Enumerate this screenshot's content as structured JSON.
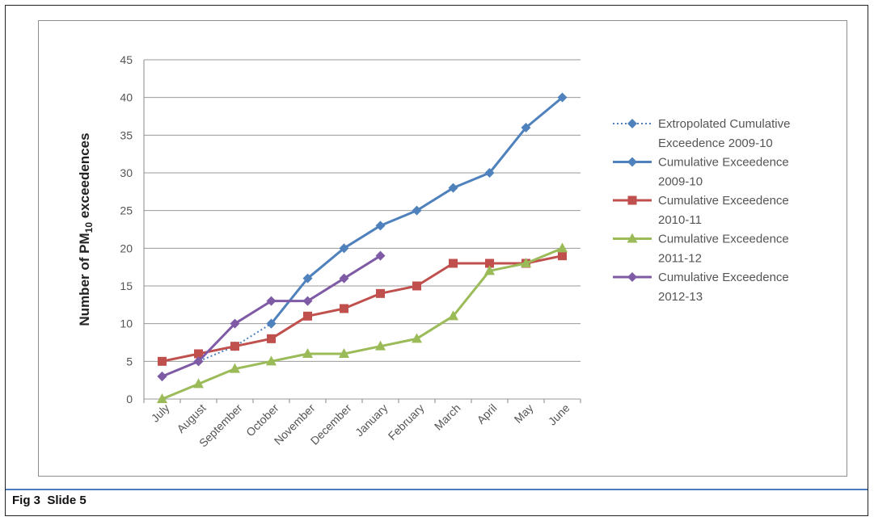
{
  "caption": "Fig 3  Slide 5",
  "chart_data": {
    "type": "line",
    "title": "",
    "xlabel": "",
    "ylabel": "Number of PM10 exceedences",
    "ylabel_parts": {
      "pre": "Number of PM",
      "sub": "10",
      "post": " exceedences"
    },
    "ylim": [
      0,
      45
    ],
    "yticks": [
      "0",
      "5",
      "10",
      "15",
      "20",
      "25",
      "30",
      "35",
      "40",
      "45"
    ],
    "grid": true,
    "legend": "right",
    "categories": [
      "July",
      "August",
      "September",
      "October",
      "November",
      "December",
      "January",
      "February",
      "March",
      "April",
      "May",
      "June"
    ],
    "series": [
      {
        "name": "Extropolated Cumulative Exceedence 2009-10",
        "legend_lines": [
          "Extropolated Cumulative",
          "Exceedence 2009-10"
        ],
        "color": "#4f81bd",
        "dash": true,
        "marker": "diamond",
        "values": [
          3,
          5,
          7,
          10,
          null,
          null,
          null,
          null,
          null,
          null,
          null,
          null
        ]
      },
      {
        "name": "Cumulative Exceedence 2009-10",
        "legend_lines": [
          "Cumulative Exceedence",
          "2009-10"
        ],
        "color": "#4f81bd",
        "dash": false,
        "marker": "diamond",
        "values": [
          null,
          null,
          null,
          10,
          16,
          20,
          23,
          25,
          28,
          30,
          36,
          40
        ]
      },
      {
        "name": "Cumulative Exceedence 2010-11",
        "legend_lines": [
          "Cumulative Exceedence",
          "2010-11"
        ],
        "color": "#c0504d",
        "dash": false,
        "marker": "square",
        "values": [
          5,
          6,
          7,
          8,
          11,
          12,
          14,
          15,
          18,
          18,
          18,
          19
        ]
      },
      {
        "name": "Cumulative Exceedence 2011-12",
        "legend_lines": [
          "Cumulative Exceedence",
          "2011-12"
        ],
        "color": "#9bbb59",
        "dash": false,
        "marker": "triangle",
        "values": [
          0,
          2,
          4,
          5,
          6,
          6,
          7,
          8,
          11,
          17,
          18,
          20
        ]
      },
      {
        "name": "Cumulative Exceedence 2012-13",
        "legend_lines": [
          "Cumulative Exceedence",
          "2012-13"
        ],
        "color": "#7f5ba6",
        "dash": false,
        "marker": "diamond",
        "values": [
          3,
          5,
          10,
          13,
          13,
          16,
          19,
          null,
          null,
          null,
          null,
          null
        ]
      }
    ]
  }
}
